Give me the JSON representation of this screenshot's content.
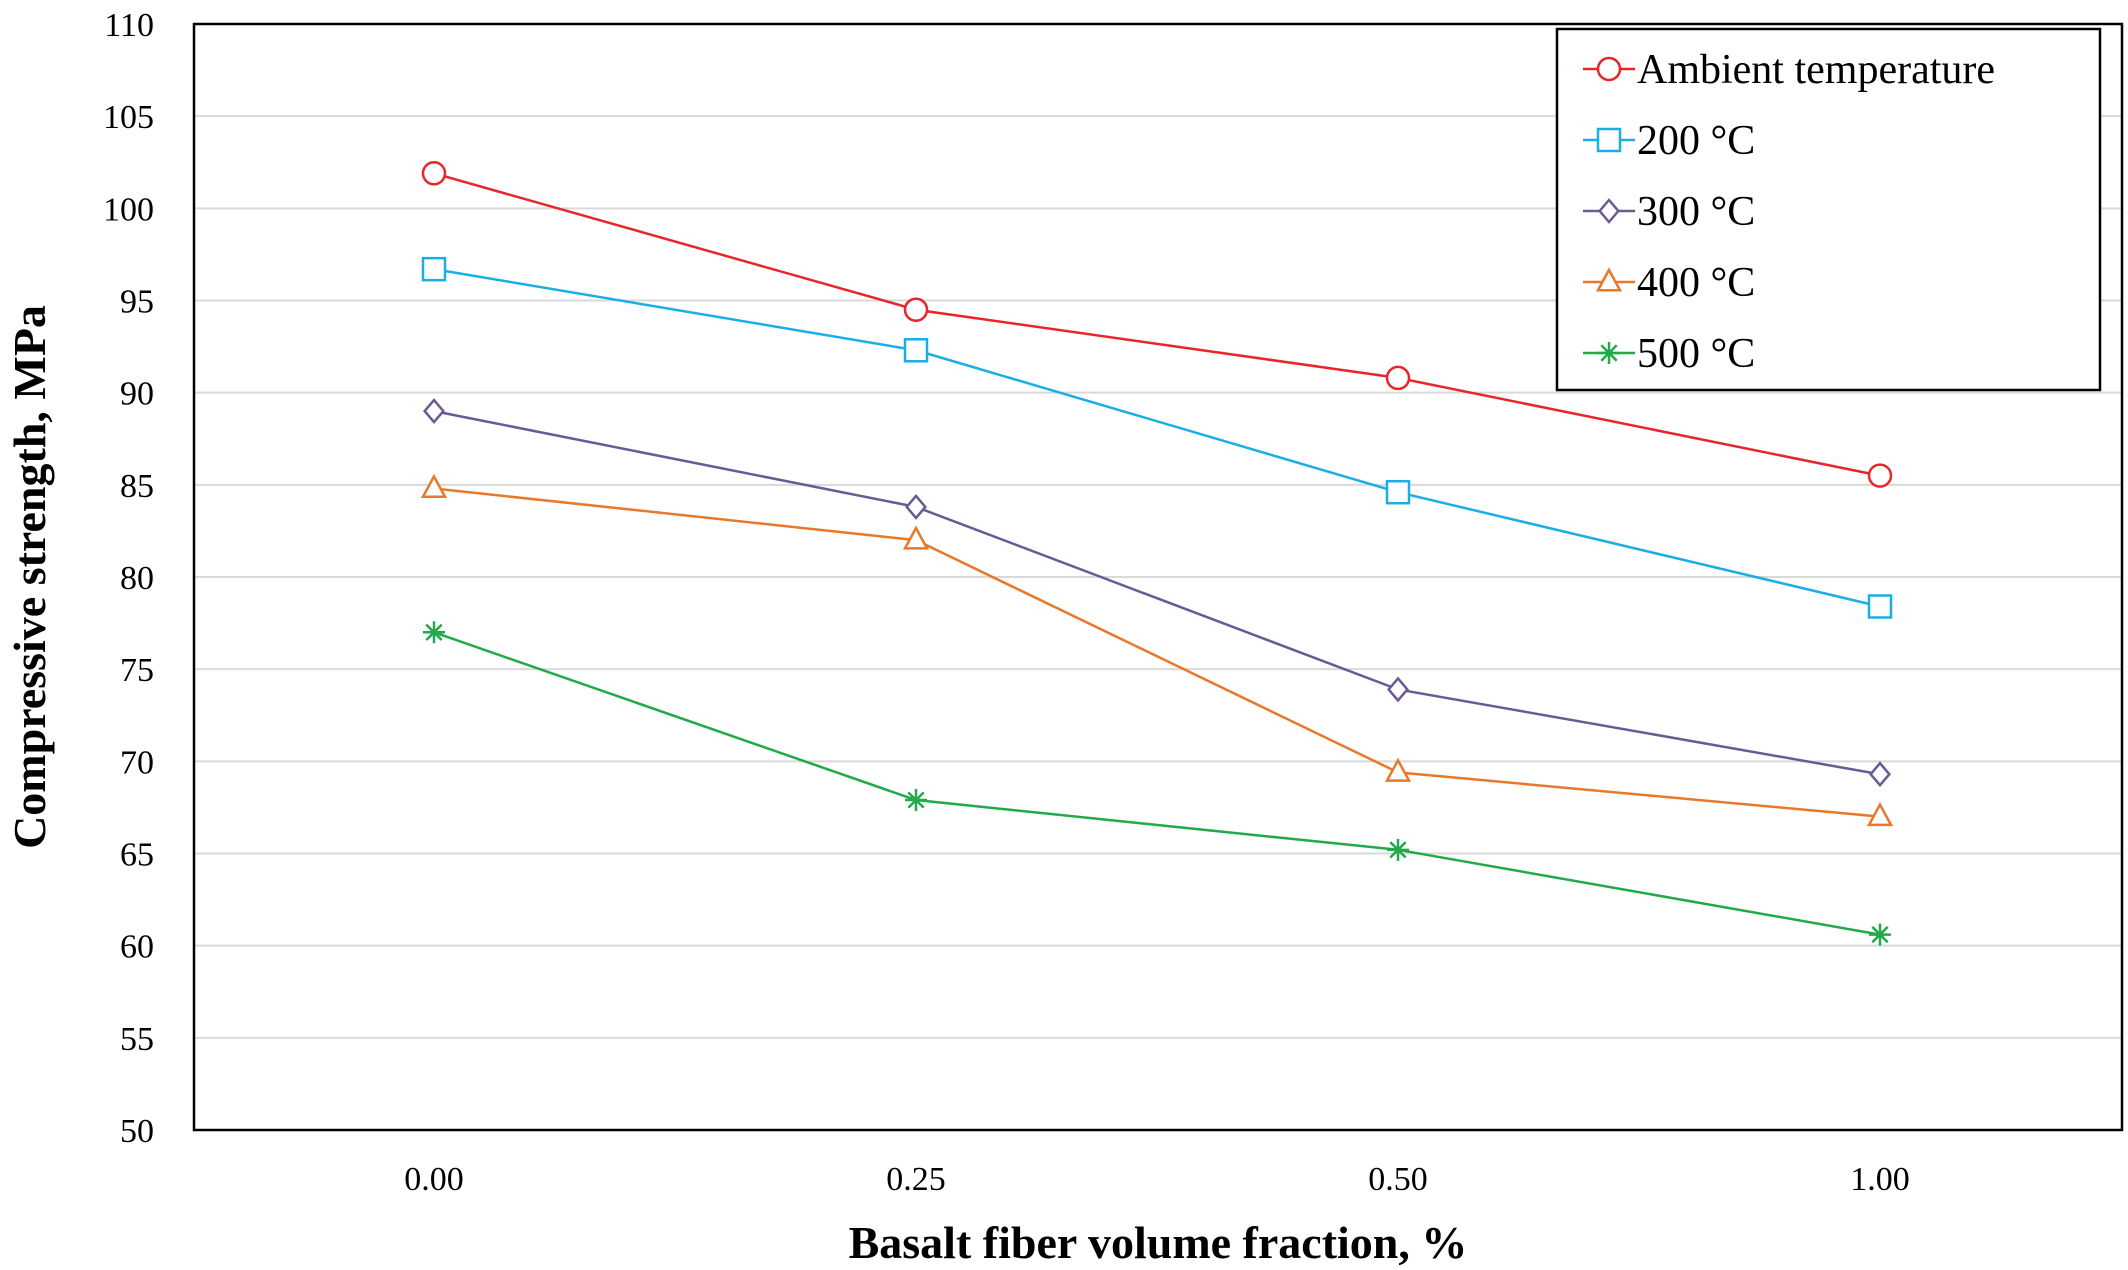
{
  "chart_data": {
    "type": "line",
    "xlabel": "Basalt fiber volume fraction, %",
    "ylabel": "Compressive strength, MPa",
    "categories": [
      "0.00",
      "0.25",
      "0.50",
      "1.00"
    ],
    "ylim": [
      50,
      110
    ],
    "ytick_step": 5,
    "grid": true,
    "legend_position": "top-right",
    "series": [
      {
        "name": "Ambient temperature",
        "color": "#e8262a",
        "marker": "circle",
        "values": [
          101.9,
          94.5,
          90.8,
          85.5
        ]
      },
      {
        "name": "200 °C",
        "color": "#1aaee6",
        "marker": "square",
        "values": [
          96.7,
          92.3,
          84.6,
          78.4
        ]
      },
      {
        "name": "300 °C",
        "color": "#6a5a93",
        "marker": "diamond",
        "values": [
          89.0,
          83.8,
          73.9,
          69.3
        ]
      },
      {
        "name": "400 °C",
        "color": "#e8782a",
        "marker": "triangle",
        "values": [
          84.8,
          82.0,
          69.4,
          67.0
        ]
      },
      {
        "name": "500 °C",
        "color": "#21a94a",
        "marker": "asterisk",
        "values": [
          77.0,
          67.9,
          65.2,
          60.6
        ]
      }
    ]
  }
}
